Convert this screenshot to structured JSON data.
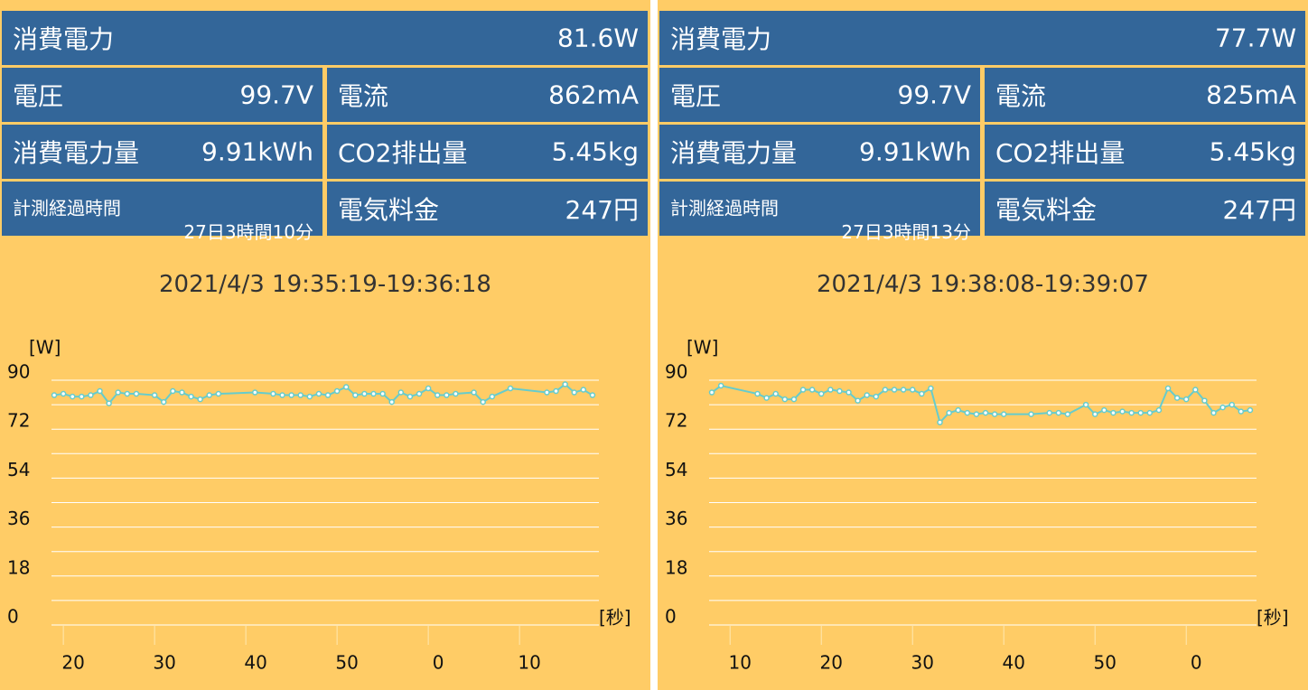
{
  "panels": [
    {
      "power": {
        "label": "消費電力",
        "value": "81.6W"
      },
      "cells": [
        {
          "label": "電圧",
          "value": "99.7V"
        },
        {
          "label": "電流",
          "value": "862mA"
        },
        {
          "label": "消費電力量",
          "value": "9.91kWh"
        },
        {
          "label": "CO2排出量",
          "value": "5.45kg"
        },
        {
          "label": "計測経過時間",
          "value": "27日3時間10分"
        },
        {
          "label": "電気料金",
          "value": "247円"
        }
      ],
      "time_range": "2021/4/3 19:35:19-19:36:18"
    },
    {
      "power": {
        "label": "消費電力",
        "value": "77.7W"
      },
      "cells": [
        {
          "label": "電圧",
          "value": "99.7V"
        },
        {
          "label": "電流",
          "value": "825mA"
        },
        {
          "label": "消費電力量",
          "value": "9.91kWh"
        },
        {
          "label": "CO2排出量",
          "value": "5.45kg"
        },
        {
          "label": "計測経過時間",
          "value": "27日3時間13分"
        },
        {
          "label": "電気料金",
          "value": "247円"
        }
      ],
      "time_range": "2021/4/3 19:38:08-19:39:07"
    }
  ],
  "chart_data": [
    {
      "type": "line",
      "y_label": "[W]",
      "x_label": "[秒]",
      "color": "#66cccc",
      "x": [
        19,
        20,
        21,
        22,
        23,
        24,
        25,
        26,
        27,
        28,
        30,
        31,
        32,
        33,
        34,
        35,
        36,
        37,
        41,
        43,
        44,
        45,
        46,
        47,
        48,
        49,
        50,
        51,
        52,
        53,
        54,
        55,
        56,
        57,
        58,
        59,
        60,
        61,
        62,
        63,
        65,
        66,
        67,
        69,
        73,
        74,
        75,
        76,
        77,
        78
      ],
      "values": [
        84.5,
        85,
        84,
        84,
        84.5,
        86,
        81.5,
        85.5,
        85,
        85,
        84.5,
        82,
        86,
        85.5,
        84,
        83,
        84.5,
        85,
        85.5,
        85,
        84.5,
        84.5,
        84.5,
        84,
        85,
        84.5,
        86,
        87.5,
        84.5,
        85,
        85,
        85,
        82,
        85.5,
        84,
        85,
        87,
        84.5,
        84.5,
        85,
        85.5,
        82,
        84,
        87,
        85.5,
        86,
        88.5,
        85.5,
        86.5,
        84.5
      ],
      "xlim": [
        18.7,
        78.7
      ],
      "xticks": [
        20,
        30,
        40,
        50,
        {
          "value": 60,
          "label": "0"
        },
        {
          "value": 70,
          "label": "10"
        }
      ],
      "ylim": [
        0,
        90
      ],
      "yticks": [
        0,
        18,
        36,
        54,
        72,
        90
      ],
      "ygrid": [
        0,
        9,
        18,
        27,
        36,
        45,
        54,
        63,
        72,
        81,
        90
      ]
    },
    {
      "type": "line",
      "y_label": "[W]",
      "x_label": "[秒]",
      "color": "#66cccc",
      "x": [
        8,
        9,
        13,
        14,
        15,
        16,
        17,
        18,
        19,
        20,
        21,
        22,
        23,
        24,
        25,
        26,
        27,
        28,
        29,
        30,
        31,
        32,
        33,
        34,
        35,
        36,
        37,
        38,
        39,
        40,
        43,
        45,
        46,
        47,
        49,
        50,
        51,
        52,
        53,
        54,
        55,
        56,
        57,
        58,
        59,
        60,
        61,
        62,
        63,
        64,
        65,
        66,
        67
      ],
      "values": [
        85.5,
        88,
        85,
        83.5,
        85,
        83,
        83,
        86.5,
        86.5,
        85,
        86.5,
        86,
        85.5,
        82.5,
        84.5,
        84,
        86.5,
        86.5,
        86.5,
        86.5,
        85,
        87,
        74.5,
        78,
        79,
        78,
        77.5,
        78,
        77.5,
        77.5,
        77.5,
        78,
        78,
        77.5,
        81,
        77.5,
        79,
        78,
        78.5,
        78,
        78,
        78,
        79,
        87,
        83.5,
        83,
        86.5,
        82.5,
        78,
        80,
        81,
        78.5,
        79
      ],
      "xlim": [
        7.7,
        67.7
      ],
      "xticks": [
        10,
        20,
        30,
        40,
        50,
        {
          "value": 60,
          "label": "0"
        }
      ],
      "ylim": [
        0,
        90
      ],
      "yticks": [
        0,
        18,
        36,
        54,
        72,
        90
      ],
      "ygrid": [
        0,
        9,
        18,
        27,
        36,
        45,
        54,
        63,
        72,
        81,
        90
      ]
    }
  ]
}
